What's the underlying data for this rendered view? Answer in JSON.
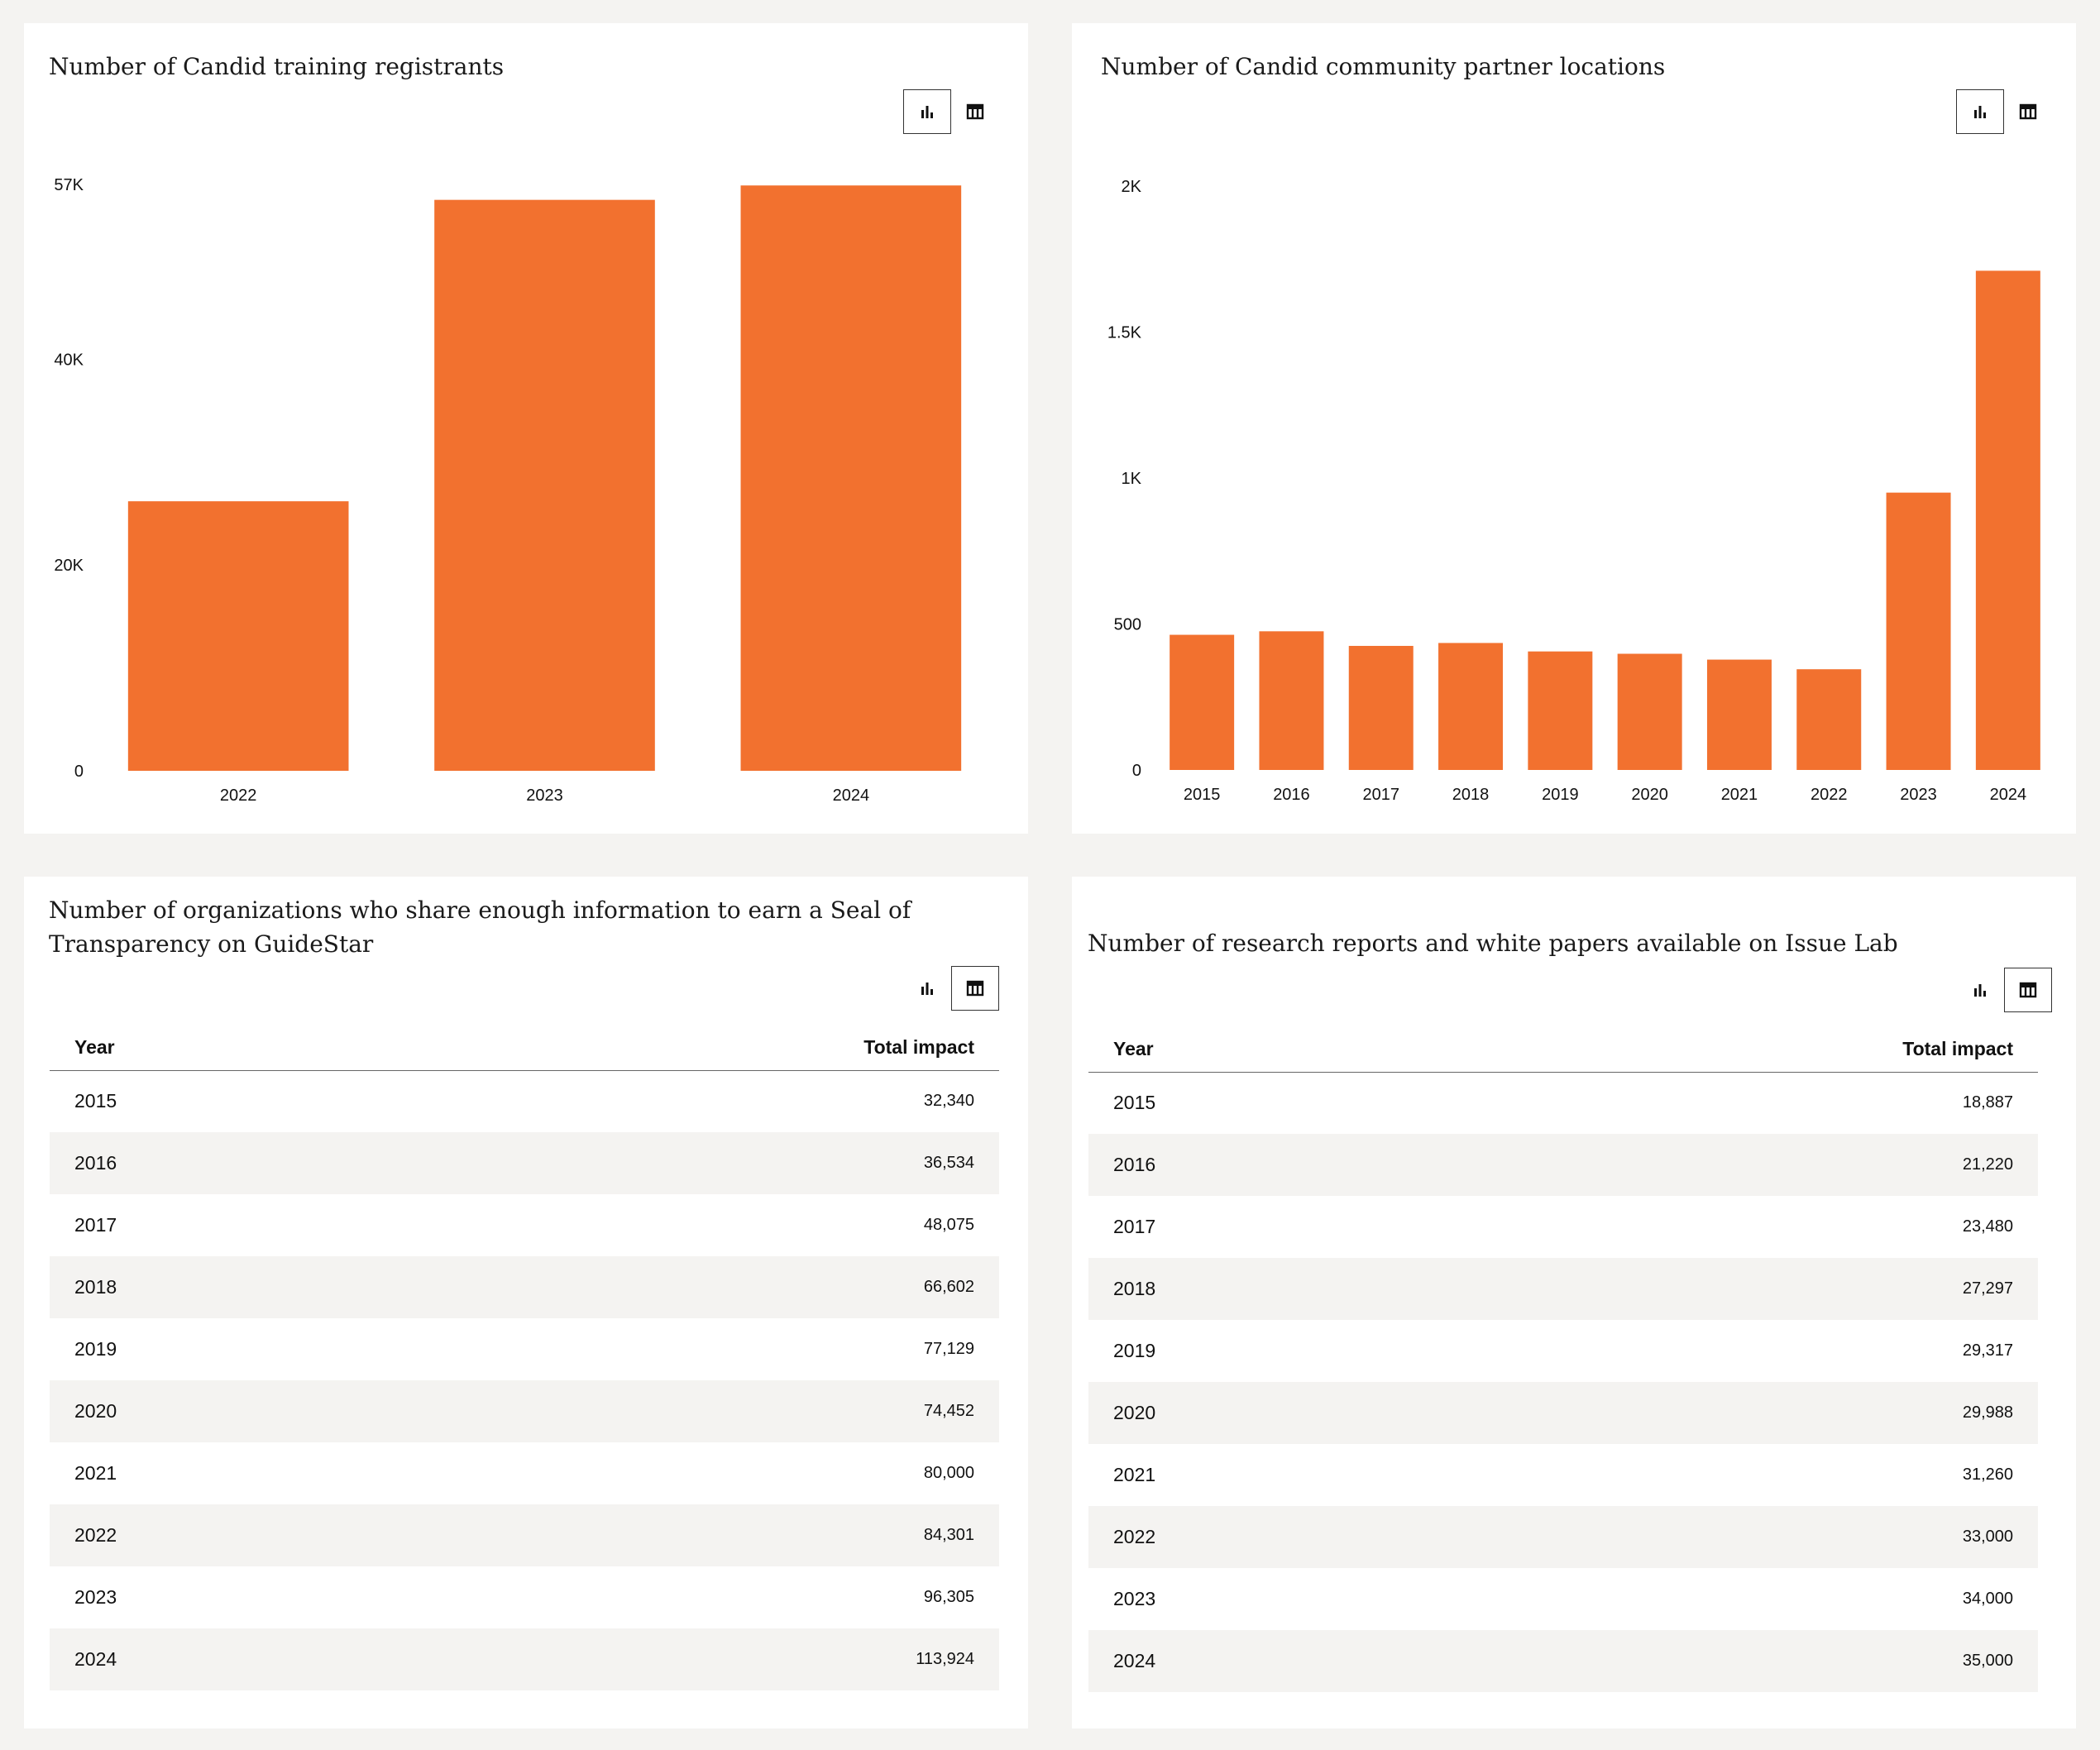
{
  "accent_color": "#f2712f",
  "icons": {
    "bar_view": "bar-chart-icon",
    "table_view": "table-icon"
  },
  "charts": [
    {
      "title": "Number of Candid training registrants",
      "view": "chart",
      "chart_data": {
        "type": "bar",
        "categories": [
          "2022",
          "2023",
          "2024"
        ],
        "values": [
          26200,
          55500,
          56900
        ],
        "ylim": [
          0,
          57000
        ],
        "yticks": [
          {
            "value": 0,
            "label": "0"
          },
          {
            "value": 20000,
            "label": "20K"
          },
          {
            "value": 40000,
            "label": "40K"
          },
          {
            "value": 57000,
            "label": "57K"
          }
        ],
        "color": "#f2712f",
        "grid": false
      }
    },
    {
      "title": "Number of Candid community partner locations",
      "view": "chart",
      "chart_data": {
        "type": "bar",
        "categories": [
          "2015",
          "2016",
          "2017",
          "2018",
          "2019",
          "2020",
          "2021",
          "2022",
          "2023",
          "2024"
        ],
        "values": [
          463,
          475,
          425,
          435,
          406,
          398,
          378,
          345,
          950,
          1710
        ],
        "ylim": [
          0,
          2000
        ],
        "yticks": [
          {
            "value": 0,
            "label": "0"
          },
          {
            "value": 500,
            "label": "500"
          },
          {
            "value": 1000,
            "label": "1K"
          },
          {
            "value": 1500,
            "label": "1.5K"
          },
          {
            "value": 2000,
            "label": "2K"
          }
        ],
        "color": "#f2712f",
        "grid": false
      }
    },
    {
      "title": "Number of organizations who share enough information to earn a Seal of Transparency on GuideStar",
      "view": "table",
      "chart_data": {
        "type": "table",
        "columns": [
          "Year",
          "Total impact"
        ],
        "rows": [
          [
            "2015",
            "32,340"
          ],
          [
            "2016",
            "36,534"
          ],
          [
            "2017",
            "48,075"
          ],
          [
            "2018",
            "66,602"
          ],
          [
            "2019",
            "77,129"
          ],
          [
            "2020",
            "74,452"
          ],
          [
            "2021",
            "80,000"
          ],
          [
            "2022",
            "84,301"
          ],
          [
            "2023",
            "96,305"
          ],
          [
            "2024",
            "113,924"
          ]
        ]
      }
    },
    {
      "title": "Number of research reports and white papers available on Issue Lab",
      "view": "table",
      "chart_data": {
        "type": "table",
        "columns": [
          "Year",
          "Total impact"
        ],
        "rows": [
          [
            "2015",
            "18,887"
          ],
          [
            "2016",
            "21,220"
          ],
          [
            "2017",
            "23,480"
          ],
          [
            "2018",
            "27,297"
          ],
          [
            "2019",
            "29,317"
          ],
          [
            "2020",
            "29,988"
          ],
          [
            "2021",
            "31,260"
          ],
          [
            "2022",
            "33,000"
          ],
          [
            "2023",
            "34,000"
          ],
          [
            "2024",
            "35,000"
          ]
        ]
      }
    }
  ]
}
